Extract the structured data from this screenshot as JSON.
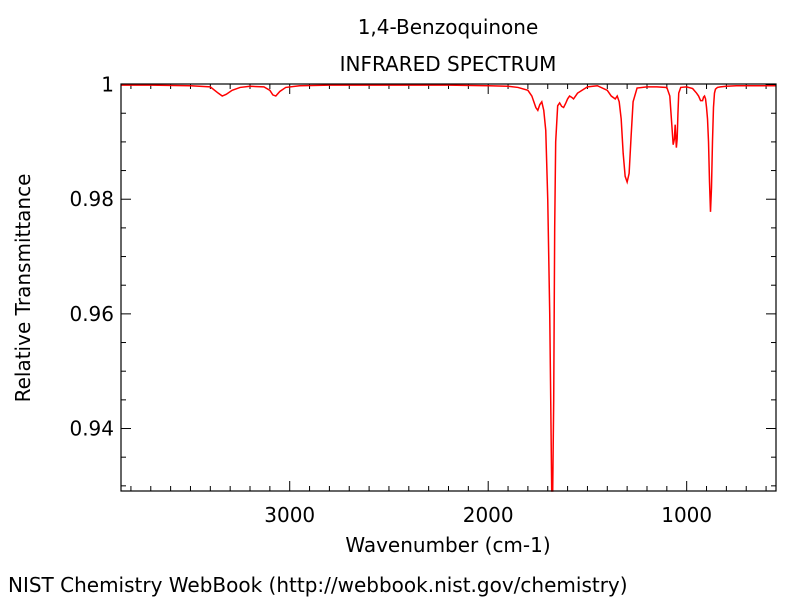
{
  "chart_data": {
    "type": "line",
    "title": "1,4-Benzoquinone",
    "subtitle": "INFRARED SPECTRUM",
    "xlabel": "Wavenumber (cm-1)",
    "ylabel": "Relative Transmittance",
    "xlim": [
      3850,
      550
    ],
    "ylim": [
      0.9291,
      1.0001
    ],
    "x_reversed": true,
    "x_ticks": [
      3000,
      2000,
      1000
    ],
    "x_tick_labels": [
      "3000",
      "2000",
      "1000"
    ],
    "y_ticks": [
      1,
      0.98,
      0.96,
      0.94
    ],
    "y_tick_labels": [
      "1",
      "0.98",
      "0.96",
      "0.94"
    ],
    "grid": false,
    "line_color": "#ff0000",
    "series": [
      {
        "x": [
          3850,
          3700,
          3500,
          3400,
          3360,
          3340,
          3320,
          3290,
          3250,
          3200,
          3130,
          3100,
          3085,
          3070,
          3050,
          3020,
          2950,
          2800,
          2500,
          2200,
          2000,
          1900,
          1850,
          1800,
          1780,
          1760,
          1750,
          1740,
          1730,
          1720,
          1710,
          1700,
          1690,
          1685,
          1680,
          1675,
          1670,
          1665,
          1660,
          1650,
          1640,
          1630,
          1620,
          1610,
          1600,
          1590,
          1580,
          1570,
          1560,
          1550,
          1500,
          1450,
          1400,
          1380,
          1360,
          1350,
          1340,
          1330,
          1320,
          1310,
          1300,
          1290,
          1280,
          1270,
          1250,
          1200,
          1150,
          1100,
          1085,
          1075,
          1068,
          1062,
          1058,
          1055,
          1052,
          1048,
          1044,
          1040,
          1030,
          1000,
          970,
          950,
          940,
          930,
          920,
          915,
          910,
          905,
          900,
          895,
          890,
          885,
          880,
          875,
          870,
          865,
          860,
          855,
          845,
          830,
          800,
          750,
          650,
          550
        ],
        "y": [
          0.9999,
          0.9999,
          0.9998,
          0.9996,
          0.9985,
          0.998,
          0.9983,
          0.999,
          0.9995,
          0.9997,
          0.9996,
          0.999,
          0.9982,
          0.998,
          0.9988,
          0.9995,
          0.9998,
          0.9999,
          0.9999,
          0.9999,
          0.9998,
          0.9997,
          0.9995,
          0.999,
          0.998,
          0.996,
          0.9955,
          0.9965,
          0.997,
          0.9955,
          0.992,
          0.98,
          0.96,
          0.945,
          0.9291,
          0.9291,
          0.945,
          0.975,
          0.99,
          0.9963,
          0.9968,
          0.9962,
          0.996,
          0.9967,
          0.9975,
          0.998,
          0.9978,
          0.9975,
          0.998,
          0.9985,
          0.9996,
          0.9998,
          0.999,
          0.998,
          0.9975,
          0.998,
          0.997,
          0.994,
          0.988,
          0.984,
          0.983,
          0.9845,
          0.991,
          0.997,
          0.9994,
          0.9996,
          0.9996,
          0.9995,
          0.998,
          0.993,
          0.9895,
          0.9905,
          0.993,
          0.991,
          0.989,
          0.9905,
          0.995,
          0.9985,
          0.9995,
          0.9996,
          0.9993,
          0.9985,
          0.998,
          0.9972,
          0.9972,
          0.9978,
          0.998,
          0.9975,
          0.996,
          0.994,
          0.99,
          0.983,
          0.9778,
          0.982,
          0.99,
          0.996,
          0.9985,
          0.9992,
          0.9995,
          0.9996,
          0.9997,
          0.9998,
          0.9998,
          0.9998
        ]
      }
    ]
  },
  "footer": {
    "credit": "NIST Chemistry WebBook (http://webbook.nist.gov/chemistry)"
  }
}
